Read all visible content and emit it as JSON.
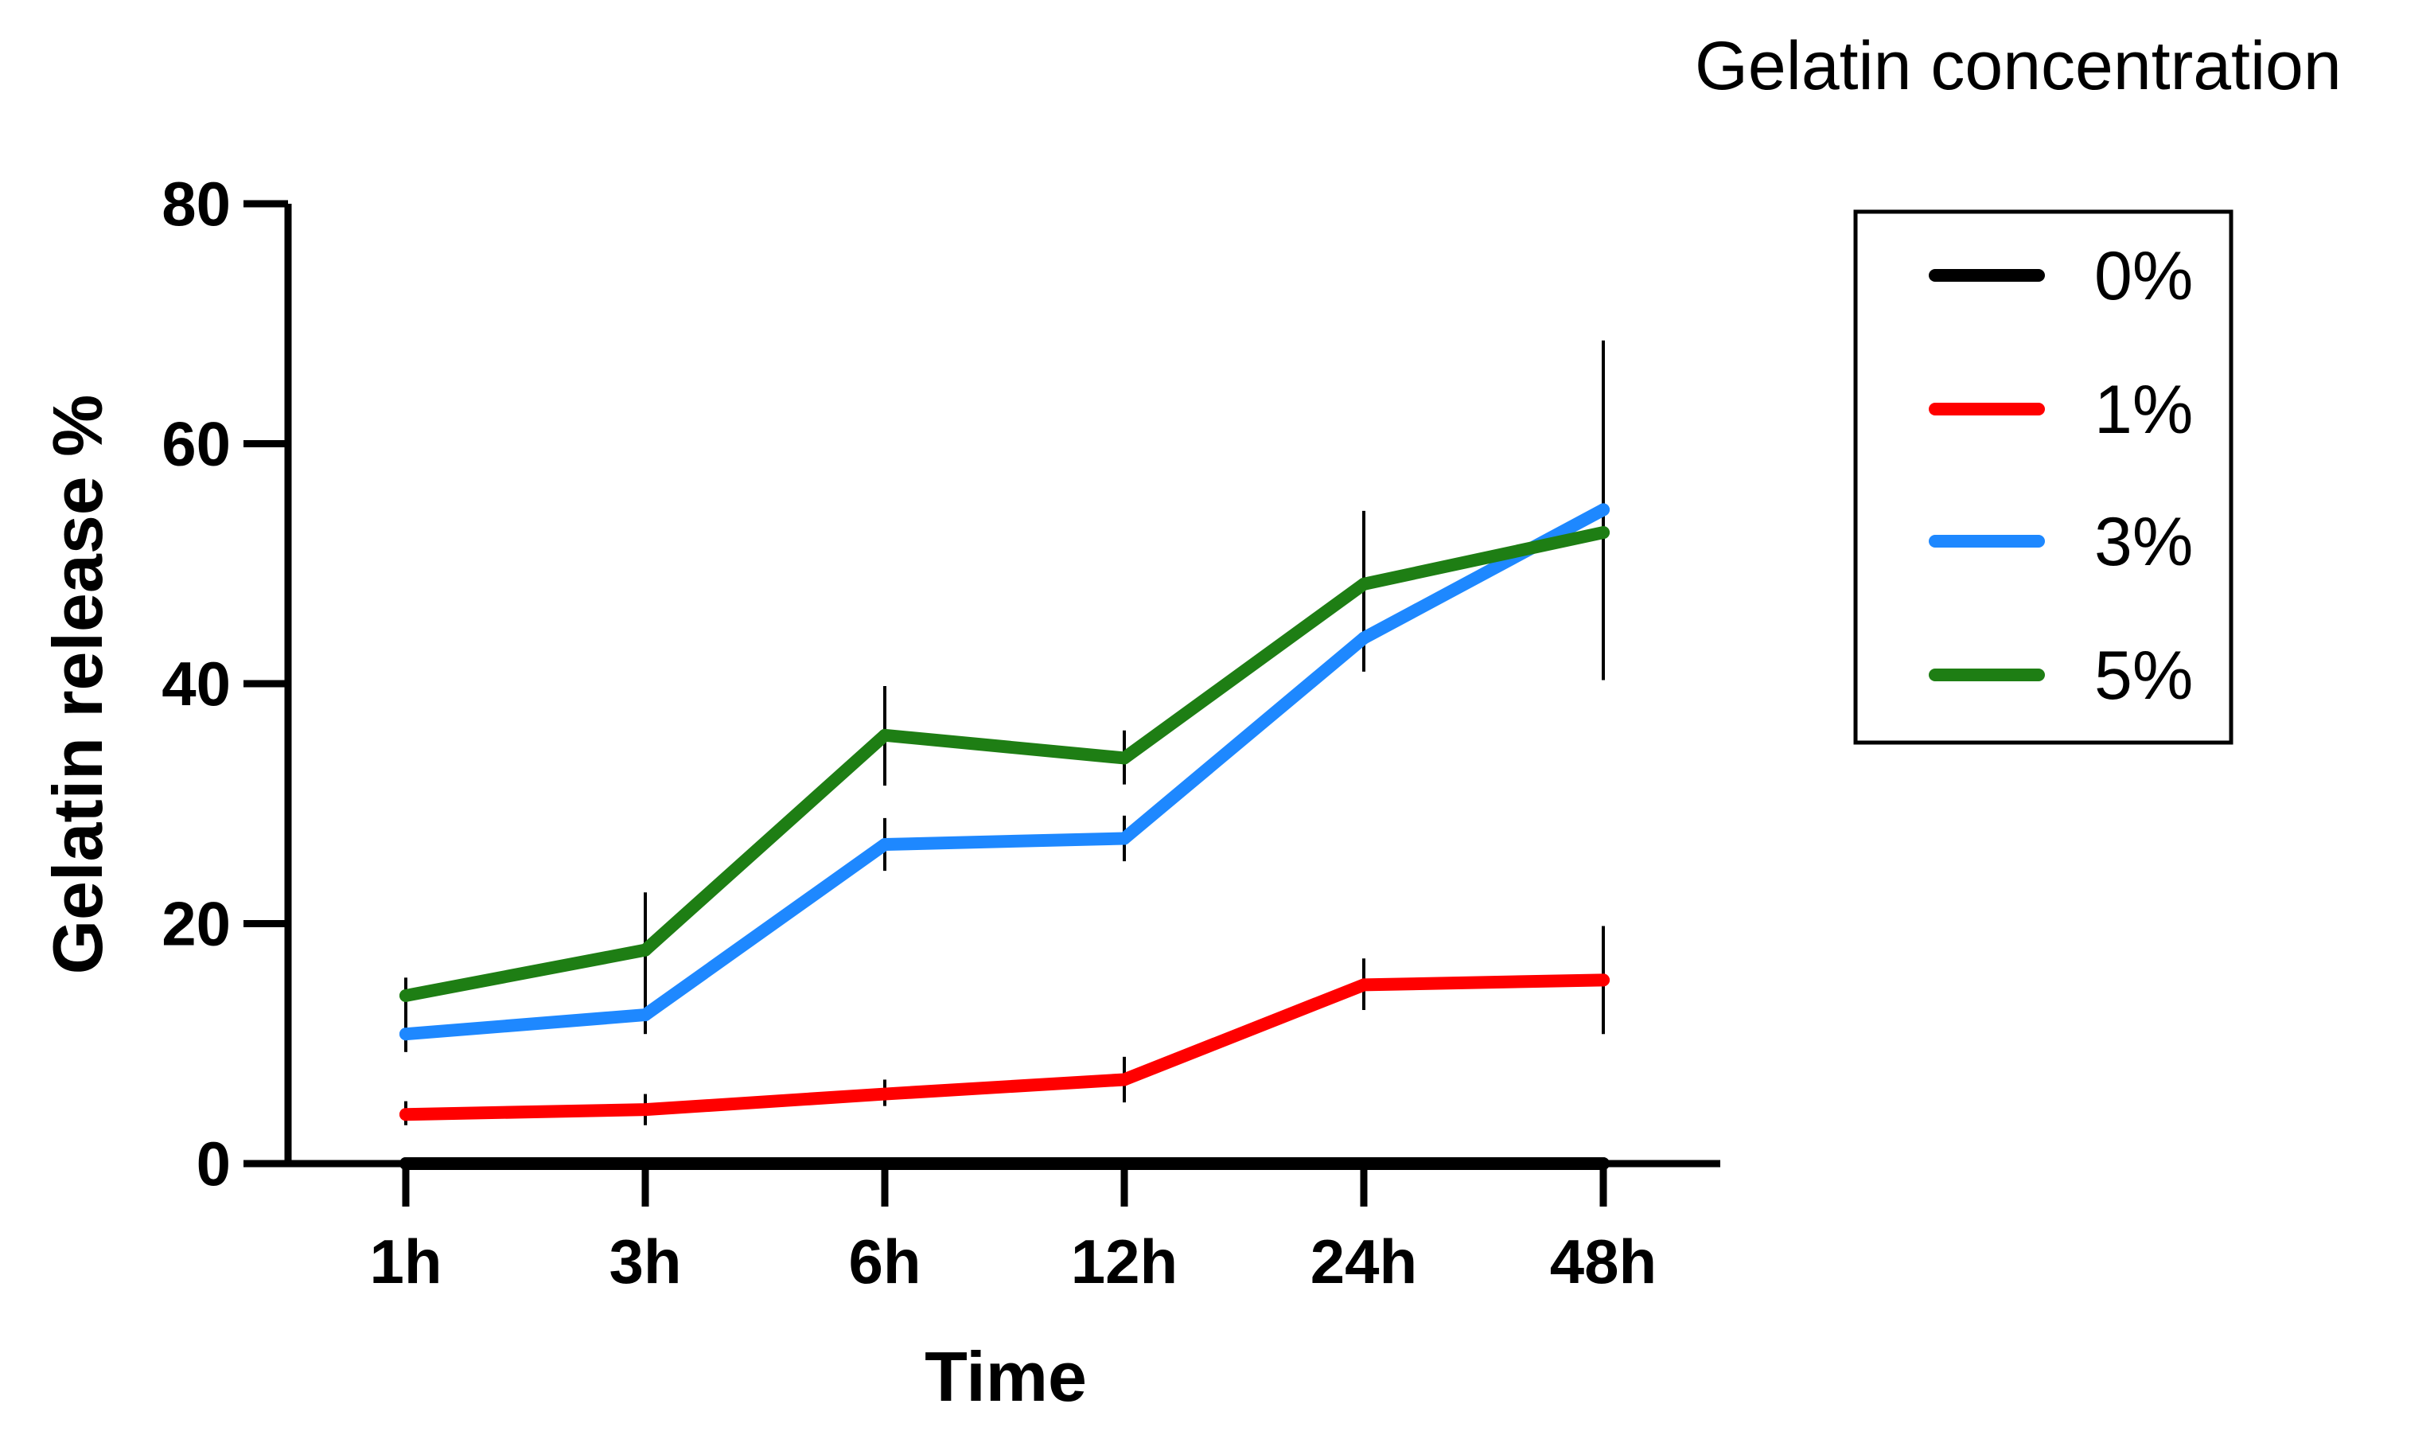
{
  "chart_data": {
    "type": "line",
    "title": "",
    "xlabel": "Time",
    "ylabel": "Gelatin release %",
    "categories": [
      "1h",
      "3h",
      "6h",
      "12h",
      "24h",
      "48h"
    ],
    "yticks": [
      "0",
      "20",
      "40",
      "60",
      "80"
    ],
    "ylim": [
      0,
      80
    ],
    "grid": false,
    "legend": {
      "title": "Gelatin concentration",
      "placement": "right"
    },
    "series": [
      {
        "name": "0%",
        "color": "#000000",
        "values": [
          0,
          0,
          0,
          0,
          0,
          0
        ],
        "err_low": [
          0,
          0,
          0,
          0,
          0,
          0
        ],
        "err_high": [
          0,
          0,
          0,
          0,
          0,
          0
        ]
      },
      {
        "name": "1%",
        "color": "#ff0000",
        "values": [
          4.1,
          4.5,
          5.8,
          7.0,
          14.9,
          15.3
        ],
        "err_low": [
          3.2,
          3.2,
          4.8,
          5.1,
          12.8,
          10.8
        ],
        "err_high": [
          5.2,
          5.8,
          7.0,
          8.9,
          17.1,
          19.8
        ]
      },
      {
        "name": "3%",
        "color": "#1e88ff",
        "values": [
          10.8,
          12.4,
          26.6,
          27.1,
          43.8,
          54.5
        ],
        "err_low": [
          9.3,
          10.8,
          24.4,
          25.2,
          41.0,
          40.3
        ],
        "err_high": [
          12.5,
          14.0,
          28.8,
          29.0,
          46.8,
          68.6
        ]
      },
      {
        "name": "5%",
        "color": "#1e7e14",
        "values": [
          14.0,
          17.8,
          35.7,
          33.8,
          48.3,
          52.6
        ],
        "err_low": [
          12.0,
          13.0,
          31.5,
          31.6,
          43.0,
          40.3
        ],
        "err_high": [
          15.5,
          22.6,
          39.8,
          36.1,
          54.4,
          68.6
        ]
      }
    ]
  }
}
